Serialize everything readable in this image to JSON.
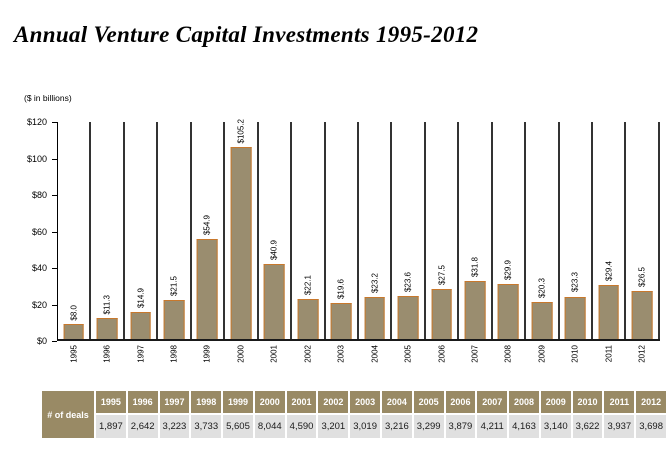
{
  "page": {
    "title": "Annual Venture Capital Investments 1995-2012",
    "units_label": "($ in billions)"
  },
  "colors": {
    "bar_fill": "#9a8d6f",
    "bar_border": "#c8782c",
    "separator_line": "#333333",
    "axis_line": "#000000",
    "table_header_bg": "#998a65",
    "table_header_text": "#ffffff",
    "table_value_bg": "#e0e0e0",
    "table_value_text": "#1a1a1a"
  },
  "chart_data": {
    "type": "bar",
    "title": "Annual Venture Capital Investments 1995-2012",
    "ylabel": "($ in billions)",
    "xlabel": "",
    "categories": [
      "1995",
      "1996",
      "1997",
      "1998",
      "1999",
      "2000",
      "2001",
      "2002",
      "2003",
      "2004",
      "2005",
      "2006",
      "2007",
      "2008",
      "2009",
      "2010",
      "2011",
      "2012"
    ],
    "values": [
      8.0,
      11.3,
      14.9,
      21.5,
      54.9,
      105.2,
      40.9,
      22.1,
      19.6,
      23.2,
      23.6,
      27.5,
      31.8,
      29.9,
      20.3,
      23.3,
      29.4,
      26.5
    ],
    "bar_labels": [
      "$8.0",
      "$11.3",
      "$14.9",
      "$21.5",
      "$54.9",
      "$105.2",
      "$40.9",
      "$22.1",
      "$19.6",
      "$23.2",
      "$23.6",
      "$27.5",
      "$31.8",
      "$29.9",
      "$20.3",
      "$23.3",
      "$29.4",
      "$26.5"
    ],
    "ylim": [
      0,
      120
    ],
    "ytick_values": [
      0,
      20,
      40,
      60,
      80,
      100,
      120
    ],
    "ytick_labels": [
      "$0",
      "$20",
      "$40",
      "$60",
      "$80",
      "$100",
      "$120"
    ],
    "grid": "vertical separators between year columns, no horizontal gridlines",
    "legend": "none"
  },
  "table": {
    "row_header": "# of deals",
    "years": [
      "1995",
      "1996",
      "1997",
      "1998",
      "1999",
      "2000",
      "2001",
      "2002",
      "2003",
      "2004",
      "2005",
      "2006",
      "2007",
      "2008",
      "2009",
      "2010",
      "2011",
      "2012"
    ],
    "deals": [
      "1,897",
      "2,642",
      "3,223",
      "3,733",
      "5,605",
      "8,044",
      "4,590",
      "3,201",
      "3,019",
      "3,216",
      "3,299",
      "3,879",
      "4,211",
      "4,163",
      "3,140",
      "3,622",
      "3,937",
      "3,698"
    ]
  }
}
